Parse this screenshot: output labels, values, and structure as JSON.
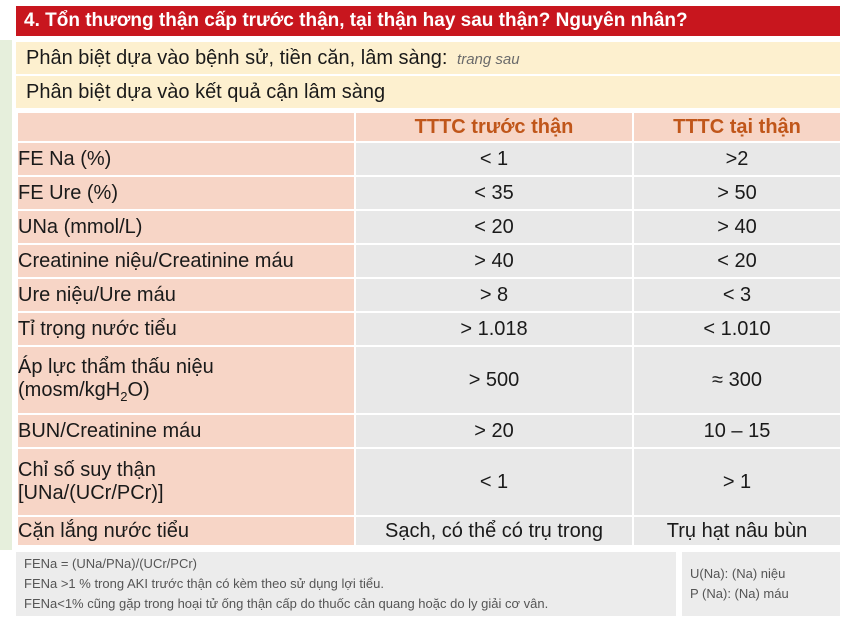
{
  "title": "4. Tổn thương thận cấp trước thận, tại thận hay sau thận? Nguyên nhân?",
  "row1": {
    "text": "Phân biệt dựa vào bệnh sử, tiền căn, lâm sàng:",
    "note": "trang sau"
  },
  "row2": {
    "text": "Phân biệt dựa vào kết quả cận lâm sàng"
  },
  "table": {
    "headers": [
      "",
      "TTTC trước thận",
      "TTTC tại thận"
    ],
    "rows": [
      {
        "label": "FE Na (%)",
        "pre": "< 1",
        "intra": ">2"
      },
      {
        "label": "FE Ure (%)",
        "pre": "< 35",
        "intra": "> 50"
      },
      {
        "label": "UNa (mmol/L)",
        "pre": "< 20",
        "intra": "> 40"
      },
      {
        "label": "Creatinine niệu/Creatinine máu",
        "pre": "> 40",
        "intra": "< 20"
      },
      {
        "label": "Ure niệu/Ure máu",
        "pre": "> 8",
        "intra": "< 3"
      },
      {
        "label": "Tỉ trọng nước tiểu",
        "pre": "> 1.018",
        "intra": "< 1.010"
      },
      {
        "label_line1": "Áp lực thẩm thấu niệu",
        "label_line2_a": "(mosm/kgH",
        "label_line2_sub": "2",
        "label_line2_b": "O)",
        "pre": "> 500",
        "intra": "≈ 300"
      },
      {
        "label": "BUN/Creatinine máu",
        "pre": "> 20",
        "intra": "10 – 15"
      },
      {
        "label_line1": "Chỉ số suy thận",
        "label_line2": "[UNa/(UCr/PCr)]",
        "pre": "< 1",
        "intra": "> 1"
      },
      {
        "label": "Cặn lắng nước tiểu",
        "pre": "Sạch, có thể có trụ trong",
        "intra": "Trụ hạt nâu bùn"
      }
    ]
  },
  "footer": {
    "lines": [
      "FENa = (UNa/PNa)/(UCr/PCr)",
      "FENa >1 % trong AKI trước thận có kèm theo sử dụng lợi tiểu.",
      "FENa<1% cũng gặp trong hoại tử ống thận cấp do thuốc cản quang hoặc do ly giải cơ vân."
    ],
    "right_lines": [
      "U(Na): (Na) niệu",
      "P (Na): (Na) máu"
    ]
  }
}
